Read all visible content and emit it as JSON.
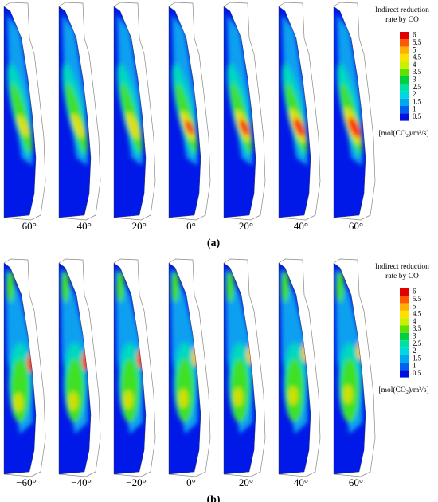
{
  "panels": [
    {
      "label": "(a)",
      "angles": [
        "−60°",
        "−40°",
        "−20°",
        "0°",
        "20°",
        "40°",
        "60°"
      ],
      "colorbar": {
        "title": [
          "Indirect reduction",
          "rate by CO"
        ],
        "ticks": [
          6,
          5.5,
          5,
          4.5,
          4,
          3.5,
          3,
          2.5,
          2,
          1.5,
          1,
          0.5
        ],
        "unit": "[mol(CO₂)/m³/s]"
      }
    },
    {
      "label": "(b)",
      "angles": [
        "−60°",
        "−40°",
        "−20°",
        "0°",
        "20°",
        "40°",
        "60°"
      ],
      "colorbar": {
        "title": [
          "Indirect reduction",
          "rate by CO"
        ],
        "ticks": [
          6,
          5.5,
          5,
          4.5,
          4,
          3.5,
          3,
          2.5,
          2,
          1.5,
          1,
          0.5
        ],
        "unit": "[mol(CO₂)/m³/s]"
      }
    }
  ]
}
